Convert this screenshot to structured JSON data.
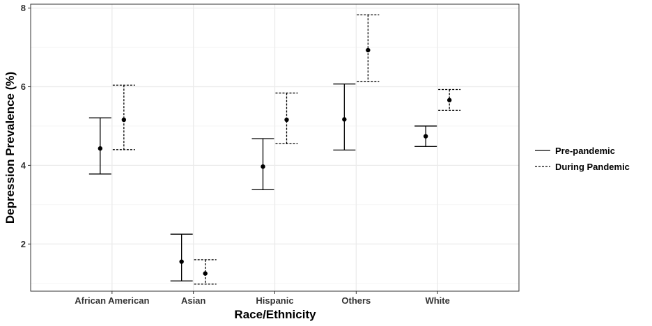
{
  "chart_data": {
    "type": "errorbar",
    "xlabel": "Race/Ethnicity",
    "ylabel": "Depression Prevalence (%)",
    "categories": [
      "African American",
      "Asian",
      "Hispanic",
      "Others",
      "White"
    ],
    "ylim": [
      0.8,
      8.1
    ],
    "yticks": [
      2,
      4,
      6,
      8
    ],
    "grid": true,
    "legend_position": "right",
    "series": [
      {
        "name": "Pre-pandemic",
        "line_style": "solid",
        "values": [
          4.43,
          1.55,
          3.97,
          5.17,
          4.74
        ],
        "lower": [
          3.78,
          1.06,
          3.38,
          4.39,
          4.48
        ],
        "upper": [
          5.21,
          2.25,
          4.68,
          6.07,
          5.0
        ]
      },
      {
        "name": "During Pandemic",
        "line_style": "dotted",
        "values": [
          5.16,
          1.25,
          5.16,
          6.93,
          5.66
        ],
        "lower": [
          4.4,
          0.98,
          4.55,
          6.13,
          5.4
        ],
        "upper": [
          6.04,
          1.6,
          5.84,
          7.83,
          5.93
        ]
      }
    ],
    "colors": {
      "points": "#000000",
      "grid": "#ebebeb",
      "panel_border": "#333333"
    }
  }
}
